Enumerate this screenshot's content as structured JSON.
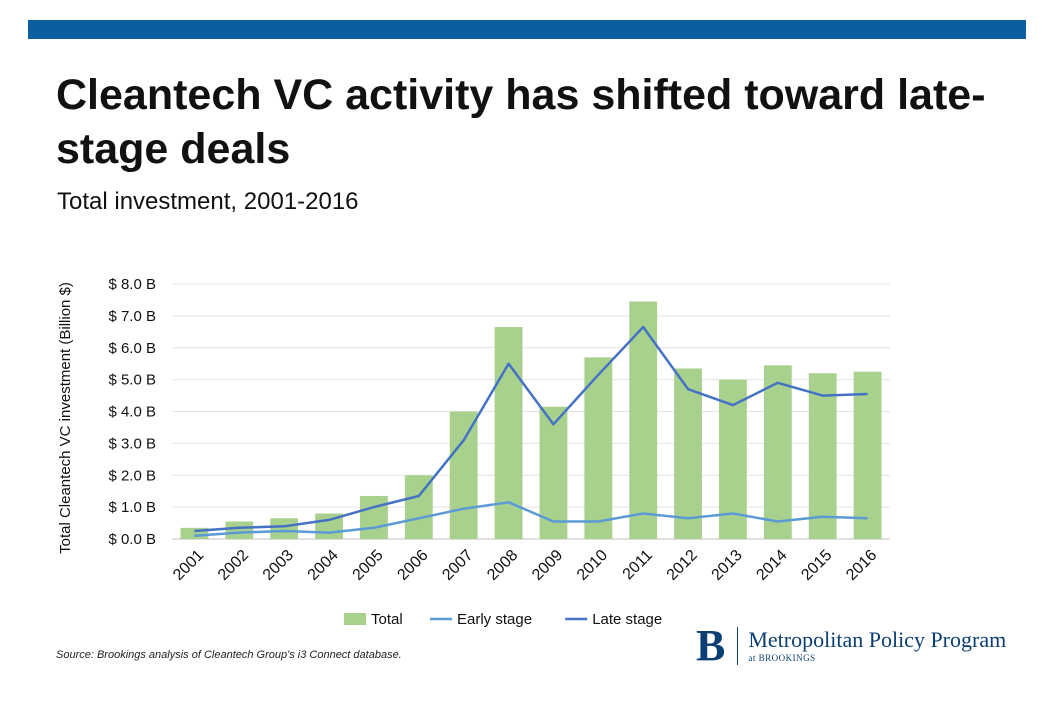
{
  "header": {
    "title": "Cleantech VC activity has shifted toward late-stage deals",
    "subtitle": "Total investment, 2001-2016"
  },
  "footer": {
    "source": "Source: Brookings analysis of Cleantech Group's i3 Connect database.",
    "brand_mark": "B",
    "brand_name": "Metropolitan Policy Program",
    "brand_sub": "at BROOKINGS"
  },
  "colors": {
    "accent_bar": "#0b5fa0",
    "total_bar": "#a9d18e",
    "early_line": "#5b9bd5",
    "late_line": "#4472c4",
    "brand": "#0b3f73"
  },
  "chart_data": {
    "type": "bar",
    "title": "",
    "ylabel": "Total Cleantech VC investment (Billion $)",
    "xlabel": "",
    "ylim": [
      0,
      8
    ],
    "y_ticks": [
      "$ 0.0 B",
      "$ 1.0 B",
      "$ 2.0 B",
      "$ 3.0 B",
      "$ 4.0 B",
      "$ 5.0 B",
      "$ 6.0 B",
      "$ 7.0 B",
      "$ 8.0 B"
    ],
    "grid": true,
    "legend_position": "bottom",
    "categories": [
      "2001",
      "2002",
      "2003",
      "2004",
      "2005",
      "2006",
      "2007",
      "2008",
      "2009",
      "2010",
      "2011",
      "2012",
      "2013",
      "2014",
      "2015",
      "2016"
    ],
    "series": [
      {
        "name": "Total",
        "kind": "bar",
        "values": [
          0.35,
          0.55,
          0.65,
          0.8,
          1.35,
          2.0,
          4.0,
          6.65,
          4.15,
          5.7,
          7.45,
          5.35,
          5.0,
          5.45,
          5.2,
          5.25
        ]
      },
      {
        "name": "Early stage",
        "kind": "line",
        "values": [
          0.1,
          0.2,
          0.25,
          0.2,
          0.35,
          0.65,
          0.95,
          1.15,
          0.55,
          0.55,
          0.8,
          0.65,
          0.8,
          0.55,
          0.7,
          0.65
        ]
      },
      {
        "name": "Late stage",
        "kind": "line",
        "values": [
          0.25,
          0.35,
          0.4,
          0.6,
          1.0,
          1.35,
          3.1,
          5.5,
          3.6,
          5.15,
          6.65,
          4.7,
          4.2,
          4.9,
          4.5,
          4.55
        ]
      }
    ]
  }
}
